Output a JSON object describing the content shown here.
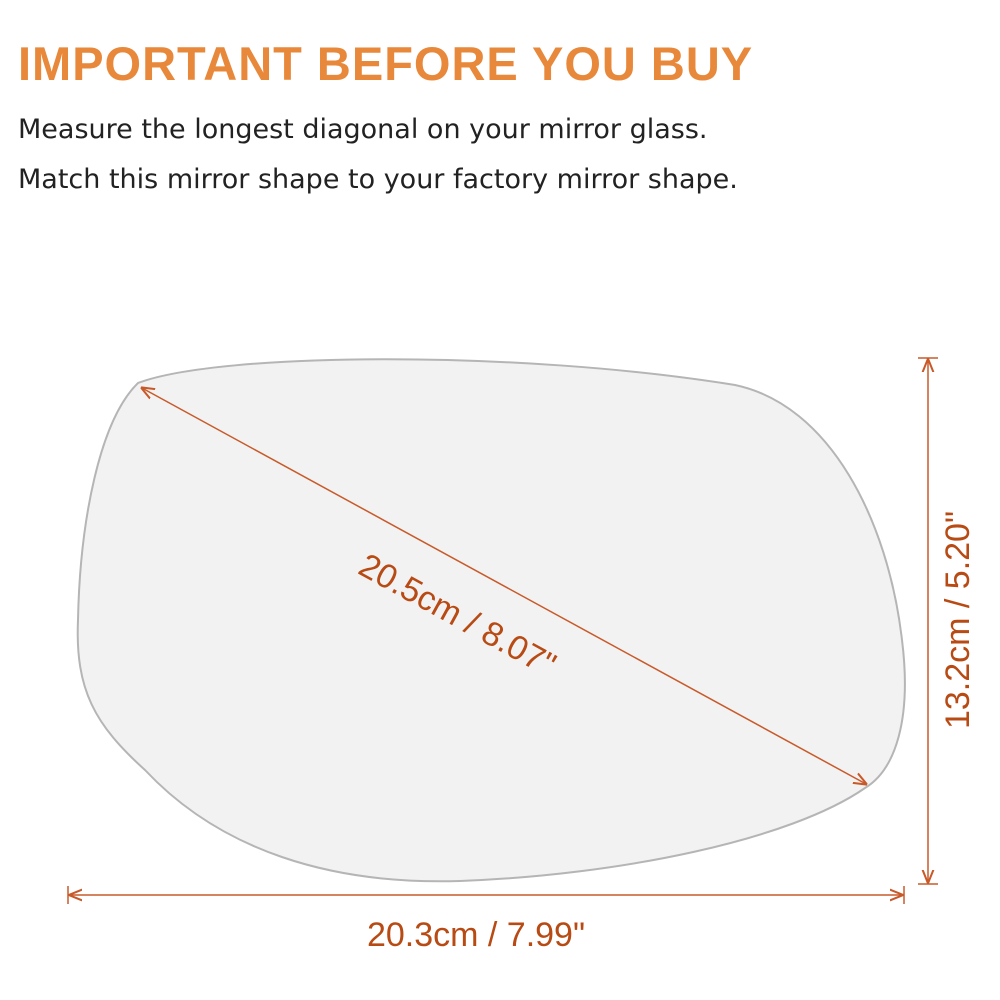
{
  "header": {
    "title": "IMPORTANT BEFORE YOU BUY",
    "instructions": [
      "Measure the longest diagonal on your mirror glass.",
      "Match this mirror shape to your factory mirror shape."
    ]
  },
  "dimensions": {
    "diagonal": "20.5cm / 8.07\"",
    "height": "13.2cm / 5.20\"",
    "width": "20.3cm / 7.99\""
  },
  "colors": {
    "title": "#e8883a",
    "dimension_line": "#c85a2a",
    "dimension_text": "#b84a14",
    "mirror_fill": "#f2f2f2",
    "mirror_outline": "#b5b5b5"
  }
}
